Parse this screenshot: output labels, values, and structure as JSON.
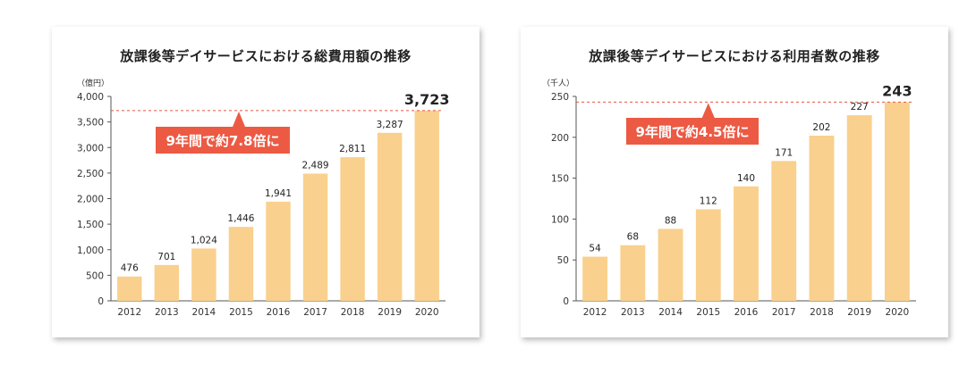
{
  "charts": [
    {
      "title": "放課後等デイサービスにおける総費用額の推移",
      "unit_label": "（億円）",
      "callout": "9年間で約7.8倍に",
      "chart_data": {
        "type": "bar",
        "categories": [
          "2012",
          "2013",
          "2014",
          "2015",
          "2016",
          "2017",
          "2018",
          "2019",
          "2020"
        ],
        "values": [
          476,
          701,
          1024,
          1446,
          1941,
          2489,
          2811,
          3287,
          3723
        ],
        "value_labels": [
          "476",
          "701",
          "1,024",
          "1,446",
          "1,941",
          "2,489",
          "2,811",
          "3,287",
          "3,723"
        ],
        "ylim": [
          0,
          4000
        ],
        "yticks": [
          0,
          500,
          1000,
          1500,
          2000,
          2500,
          3000,
          3500,
          4000
        ],
        "ytick_labels": [
          "0",
          "500",
          "1,000",
          "1,500",
          "2,000",
          "2,500",
          "3,000",
          "3,500",
          "4,000"
        ],
        "reference_line": 3723,
        "bar_color": "#f9d08d",
        "line_color": "#e8553f",
        "callout_color": "#ec5a44",
        "grid": false
      }
    },
    {
      "title": "放課後等デイサービスにおける利用者数の推移",
      "unit_label": "（千人）",
      "callout": "9年間で約4.5倍に",
      "chart_data": {
        "type": "bar",
        "categories": [
          "2012",
          "2013",
          "2014",
          "2015",
          "2016",
          "2017",
          "2018",
          "2019",
          "2020"
        ],
        "values": [
          54,
          68,
          88,
          112,
          140,
          171,
          202,
          227,
          243
        ],
        "value_labels": [
          "54",
          "68",
          "88",
          "112",
          "140",
          "171",
          "202",
          "227",
          "243"
        ],
        "ylim": [
          0,
          250
        ],
        "yticks": [
          0,
          50,
          100,
          150,
          200,
          250
        ],
        "ytick_labels": [
          "0",
          "50",
          "100",
          "150",
          "200",
          "250"
        ],
        "reference_line": 243,
        "bar_color": "#f9d08d",
        "line_color": "#e8553f",
        "callout_color": "#ec5a44",
        "grid": false
      }
    }
  ]
}
